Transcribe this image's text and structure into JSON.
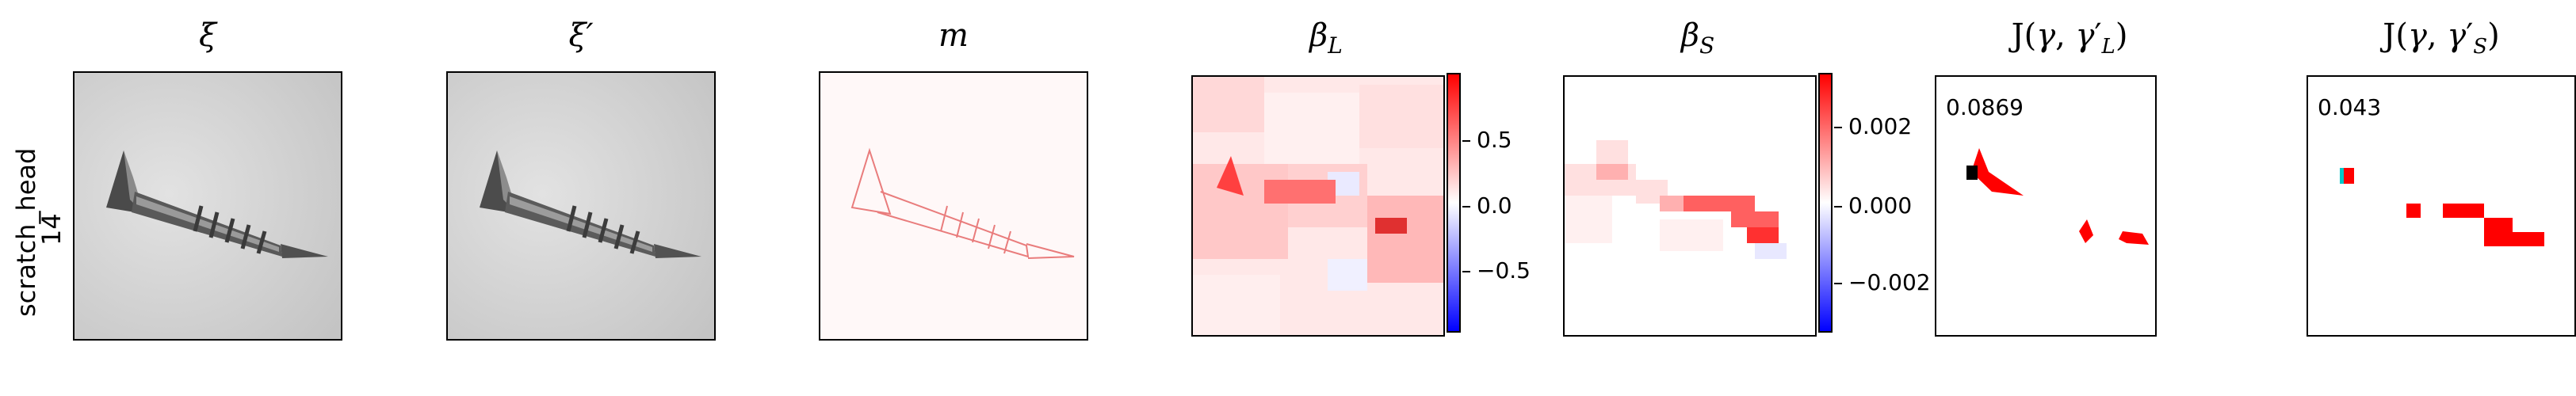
{
  "row_label": {
    "line1": "scratch_head",
    "line2": "14"
  },
  "panels": [
    {
      "title": "ξ"
    },
    {
      "title": "ξ′"
    },
    {
      "title": "m"
    },
    {
      "title": "β_L",
      "colorbar_ticks": [
        "0.5",
        "0.0",
        "−0.5"
      ]
    },
    {
      "title": "β_S",
      "colorbar_ticks": [
        "0.002",
        "0.000",
        "−0.002"
      ]
    },
    {
      "title": "J(γ, γ′_L)",
      "value": "0.0869"
    },
    {
      "title": "J(γ, γ′_S)",
      "value": "0.043"
    }
  ],
  "colors": {
    "positive": "#ff0000",
    "neutral": "#ffffff",
    "negative": "#0000ff",
    "frame": "#000000"
  }
}
